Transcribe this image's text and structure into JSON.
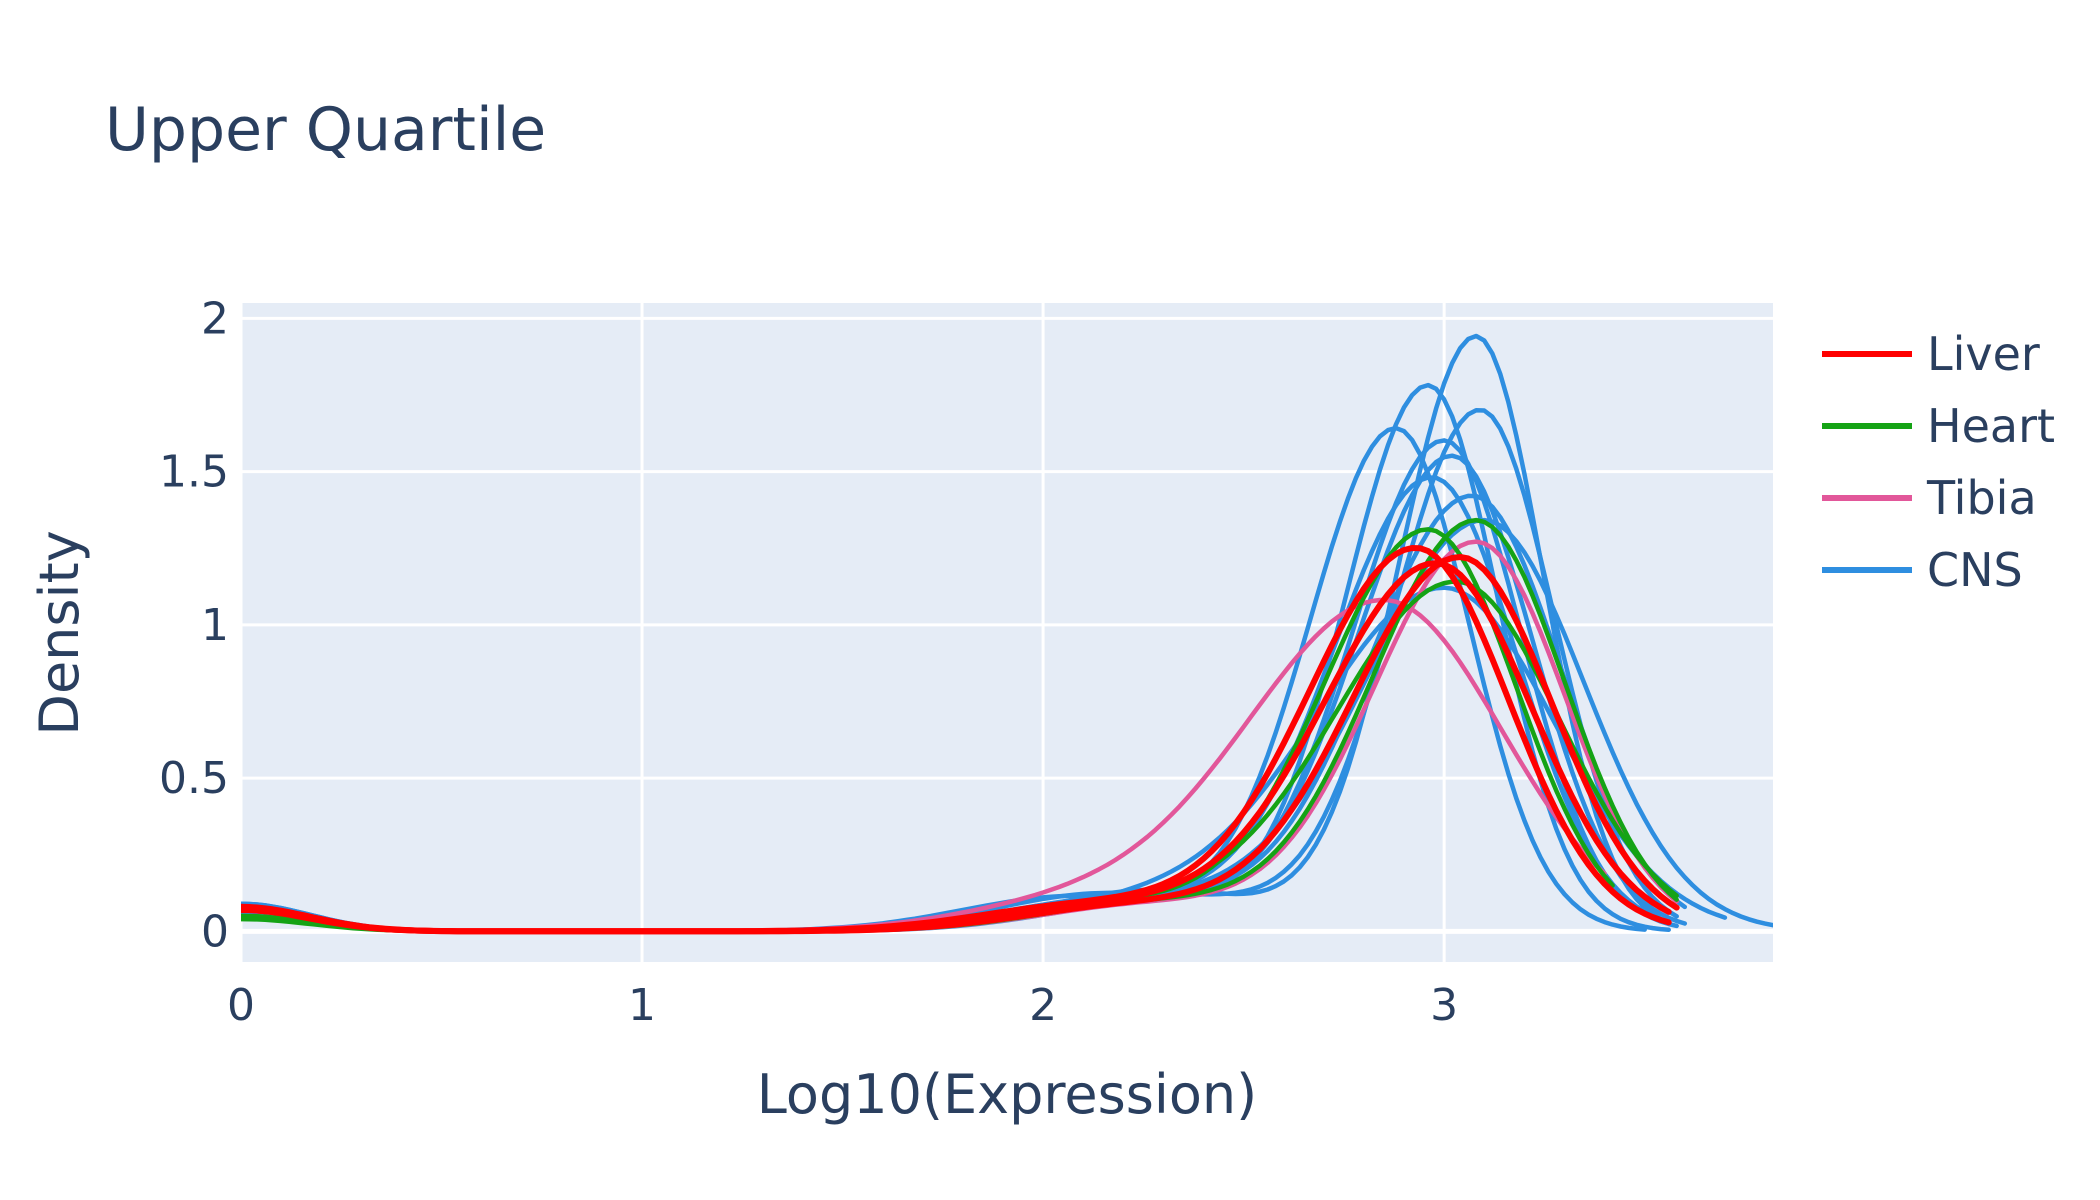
{
  "chart_data": {
    "type": "line",
    "title": "Upper Quartile",
    "xlabel": "Log10(Expression)",
    "ylabel": "Density",
    "xlim": [
      0,
      3.82
    ],
    "ylim": [
      -0.1,
      2.05
    ],
    "x_ticks": [
      0,
      1,
      2,
      3
    ],
    "y_ticks": [
      0,
      0.5,
      1,
      1.5,
      2
    ],
    "x_tick_labels": [
      "0",
      "1",
      "2",
      "3"
    ],
    "y_tick_labels": [
      "0",
      "0.5",
      "1",
      "1.5",
      "2"
    ],
    "grid": true,
    "plot_background": "#e5ecf6",
    "grid_color": "#ffffff",
    "legend_position": "right",
    "legend": [
      {
        "label": "Liver",
        "color": "#ff0000"
      },
      {
        "label": "Heart",
        "color": "#15a315"
      },
      {
        "label": "Tibia",
        "color": "#e2579a"
      },
      {
        "label": "CNS",
        "color": "#2e8ee0"
      }
    ],
    "series": [
      {
        "group": "CNS",
        "color": "#2e8ee0",
        "peak": [
          3.08,
          1.94
        ],
        "sigma": 0.18,
        "x_end": 3.56,
        "base": 0.09
      },
      {
        "group": "CNS",
        "color": "#2e8ee0",
        "peak": [
          2.96,
          1.78
        ],
        "sigma": 0.19,
        "x_end": 3.56,
        "base": 0.06
      },
      {
        "group": "CNS",
        "color": "#2e8ee0",
        "peak": [
          3.09,
          1.7
        ],
        "sigma": 0.2,
        "x_end": 3.58,
        "base": 0.07
      },
      {
        "group": "CNS",
        "color": "#2e8ee0",
        "peak": [
          2.88,
          1.64
        ],
        "sigma": 0.2,
        "x_end": 3.5,
        "base": 0.05
      },
      {
        "group": "CNS",
        "color": "#2e8ee0",
        "peak": [
          3.0,
          1.6
        ],
        "sigma": 0.21,
        "x_end": 3.58,
        "base": 0.08
      },
      {
        "group": "CNS",
        "color": "#2e8ee0",
        "peak": [
          3.02,
          1.55
        ],
        "sigma": 0.22,
        "x_end": 3.6,
        "base": 0.06
      },
      {
        "group": "CNS",
        "color": "#2e8ee0",
        "peak": [
          2.97,
          1.48
        ],
        "sigma": 0.23,
        "x_end": 3.55,
        "base": 0.07
      },
      {
        "group": "CNS",
        "color": "#2e8ee0",
        "peak": [
          3.07,
          1.42
        ],
        "sigma": 0.24,
        "x_end": 3.6,
        "base": 0.05
      },
      {
        "group": "CNS",
        "color": "#2e8ee0",
        "peak": [
          3.1,
          1.34
        ],
        "sigma": 0.27,
        "x_end": 3.82,
        "base": 0.06
      },
      {
        "group": "CNS",
        "color": "#2e8ee0",
        "peak": [
          3.0,
          1.12
        ],
        "sigma": 0.3,
        "x_end": 3.7,
        "base": 0.09
      },
      {
        "group": "Tibia",
        "color": "#e2579a",
        "peak": [
          2.85,
          1.08
        ],
        "sigma": 0.32,
        "x_end": 3.4,
        "base": 0.05
      },
      {
        "group": "Tibia",
        "color": "#e2579a",
        "peak": [
          3.08,
          1.27
        ],
        "sigma": 0.24,
        "x_end": 3.58,
        "base": 0.05
      },
      {
        "group": "Heart",
        "color": "#15a315",
        "peak": [
          2.96,
          1.31
        ],
        "sigma": 0.24,
        "x_end": 3.42,
        "base": 0.05
      },
      {
        "group": "Heart",
        "color": "#15a315",
        "peak": [
          3.08,
          1.34
        ],
        "sigma": 0.24,
        "x_end": 3.58,
        "base": 0.05
      },
      {
        "group": "Heart",
        "color": "#15a315",
        "peak": [
          3.03,
          1.14
        ],
        "sigma": 0.28,
        "x_end": 3.58,
        "base": 0.04
      },
      {
        "group": "Liver",
        "color": "#ff0000",
        "peak": [
          2.93,
          1.25
        ],
        "sigma": 0.25,
        "x_end": 3.56,
        "base": 0.07
      },
      {
        "group": "Liver",
        "color": "#ff0000",
        "peak": [
          2.98,
          1.2
        ],
        "sigma": 0.26,
        "x_end": 3.56,
        "base": 0.08
      },
      {
        "group": "Liver",
        "color": "#ff0000",
        "peak": [
          3.04,
          1.22
        ],
        "sigma": 0.25,
        "x_end": 3.58,
        "base": 0.07
      }
    ]
  }
}
